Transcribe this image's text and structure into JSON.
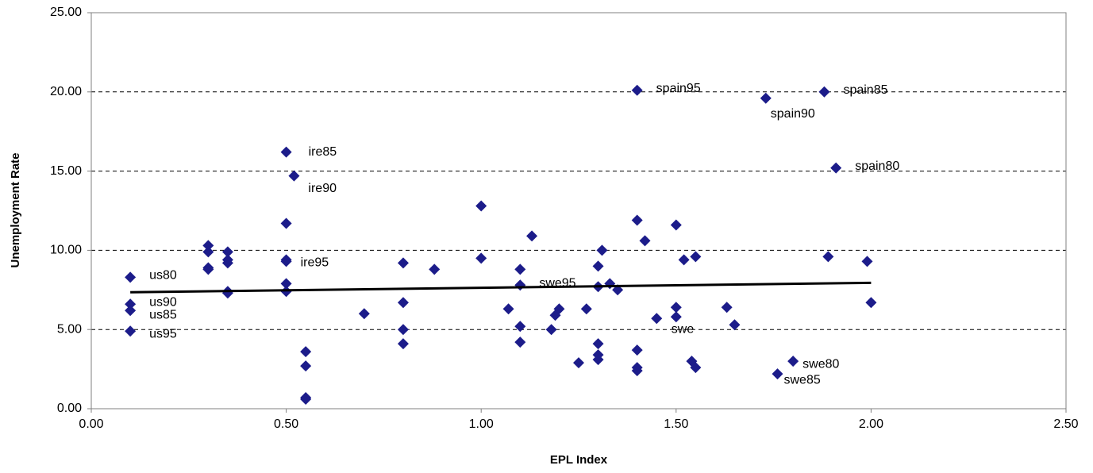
{
  "chart_data": {
    "type": "scatter",
    "xlabel": "EPL Index",
    "ylabel": "Unemployment Rate",
    "xlim": [
      0,
      2.5
    ],
    "ylim": [
      0,
      25
    ],
    "xticks": [
      {
        "value": 0,
        "label": "0.00"
      },
      {
        "value": 0.5,
        "label": "0.50"
      },
      {
        "value": 1,
        "label": "1.00"
      },
      {
        "value": 1.5,
        "label": "1.50"
      },
      {
        "value": 2,
        "label": "2.00"
      },
      {
        "value": 2.5,
        "label": "2.50"
      }
    ],
    "yticks": [
      {
        "value": 0,
        "label": "0.00"
      },
      {
        "value": 5,
        "label": "5.00"
      },
      {
        "value": 10,
        "label": "10.00"
      },
      {
        "value": 15,
        "label": "15.00"
      },
      {
        "value": 20,
        "label": "20.00"
      },
      {
        "value": 25,
        "label": "25.00"
      }
    ],
    "grid": true,
    "series": [
      {
        "color": "#1c1c8a",
        "x": [
          0.1,
          0.1,
          0.1,
          0.1,
          0.3,
          0.3,
          0.3,
          0.3,
          0.35,
          0.35,
          0.35,
          0.35,
          0.35,
          0.5,
          0.5,
          0.5,
          0.5,
          0.5,
          0.5,
          0.52,
          0.55,
          0.55,
          0.55,
          0.55,
          0.7,
          0.8,
          0.8,
          0.8,
          0.8,
          0.88,
          1.0,
          1.0,
          1.07,
          1.1,
          1.1,
          1.1,
          1.1,
          1.13,
          1.18,
          1.19,
          1.2,
          1.25,
          1.27,
          1.3,
          1.3,
          1.3,
          1.3,
          1.3,
          1.31,
          1.33,
          1.35,
          1.4,
          1.4,
          1.4,
          1.4,
          1.4,
          1.42,
          1.45,
          1.5,
          1.5,
          1.5,
          1.52,
          1.54,
          1.55,
          1.55,
          1.63,
          1.65,
          1.73,
          1.76,
          1.8,
          1.88,
          1.89,
          1.91,
          1.99,
          2.0
        ],
        "values": [
          8.3,
          6.6,
          6.2,
          4.9,
          10.3,
          9.9,
          8.9,
          8.8,
          9.9,
          9.4,
          9.2,
          7.4,
          7.3,
          16.2,
          11.7,
          9.4,
          9.3,
          7.9,
          7.4,
          14.7,
          3.6,
          2.7,
          0.7,
          0.6,
          6.0,
          9.2,
          6.7,
          5.0,
          4.1,
          8.8,
          12.8,
          9.5,
          6.3,
          8.8,
          7.8,
          5.2,
          4.2,
          10.9,
          5.0,
          5.9,
          6.3,
          2.9,
          6.3,
          9.0,
          7.7,
          4.1,
          3.4,
          3.1,
          10.0,
          7.9,
          7.5,
          20.1,
          11.9,
          3.7,
          2.6,
          2.4,
          10.6,
          5.7,
          11.6,
          6.4,
          5.8,
          9.4,
          3.0,
          9.6,
          2.6,
          6.4,
          5.3,
          19.6,
          2.2,
          3.0,
          20.0,
          9.6,
          15.2,
          9.3,
          6.7
        ],
        "point_labels": [
          "us80",
          "us90",
          "us85",
          "us95",
          null,
          null,
          null,
          null,
          null,
          null,
          null,
          null,
          null,
          "ire85",
          null,
          null,
          "ire95",
          null,
          null,
          "ire90",
          null,
          null,
          null,
          null,
          null,
          null,
          null,
          null,
          null,
          null,
          null,
          null,
          null,
          null,
          "swe95",
          null,
          null,
          null,
          null,
          null,
          null,
          null,
          null,
          null,
          null,
          null,
          null,
          null,
          null,
          null,
          null,
          "spain95",
          null,
          null,
          null,
          null,
          null,
          null,
          null,
          null,
          "swe",
          null,
          null,
          null,
          null,
          null,
          null,
          "spain90",
          "swe85",
          "swe80",
          "spain85",
          null,
          "spain80",
          null,
          null
        ]
      }
    ],
    "trendline": {
      "color": "#000000",
      "x": [
        0.1,
        2.0
      ],
      "values": [
        7.35,
        7.95
      ]
    }
  }
}
